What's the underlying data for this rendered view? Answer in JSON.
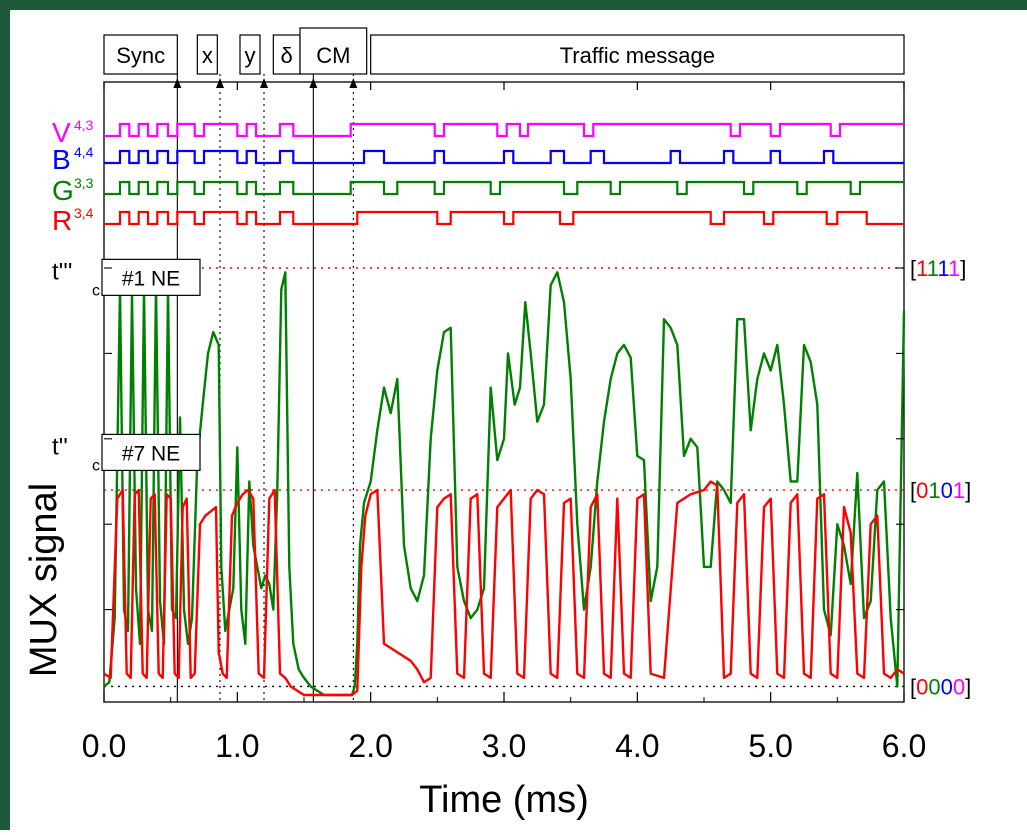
{
  "chart_data": {
    "type": "line",
    "xlabel": "Time (ms)",
    "ylabel": "MUX signal",
    "xlim": [
      0.0,
      6.0
    ],
    "x_ticks": [
      "0.0",
      "1.0",
      "2.0",
      "3.0",
      "4.0",
      "5.0",
      "6.0"
    ],
    "ylim": [
      -0.02,
      1.1
    ],
    "grid": false,
    "colors": {
      "frame": "#1c5a3a",
      "V": "#ff00ff",
      "B": "#0000ff",
      "G": "#008000",
      "R": "#ff0000",
      "axis": "#000000"
    },
    "segments": [
      {
        "label": "Sync",
        "x0": 0.0,
        "x1": 0.55
      },
      {
        "label": "x",
        "x0": 0.7,
        "x1": 0.85
      },
      {
        "label": "y",
        "x0": 1.02,
        "x1": 1.17
      },
      {
        "label": "δ",
        "x0": 1.27,
        "x1": 1.47
      },
      {
        "label": "CM",
        "x0": 1.47,
        "x1": 1.97
      },
      {
        "label": "Traffic message",
        "x0": 2.0,
        "x1": 6.0
      }
    ],
    "markers": [
      {
        "x": 0.55,
        "style": "solid"
      },
      {
        "x": 0.87,
        "style": "dotted"
      },
      {
        "x": 1.2,
        "style": "dotted"
      },
      {
        "x": 1.57,
        "style": "solid"
      },
      {
        "x": 1.87,
        "style": "dotted"
      }
    ],
    "code_levels": [
      {
        "name": "1111",
        "y": 1.0,
        "label": [
          "[",
          "1",
          "1",
          "1",
          "1",
          "]"
        ],
        "colors": [
          "#000000",
          "#ff0000",
          "#008000",
          "#0000ff",
          "#ff00ff",
          "#000000"
        ]
      },
      {
        "name": "0101",
        "y": 0.48,
        "label": [
          "[",
          "0",
          "1",
          "0",
          "1",
          "]"
        ],
        "colors": [
          "#000000",
          "#ff0000",
          "#008000",
          "#0000ff",
          "#ff00ff",
          "#000000"
        ]
      },
      {
        "name": "0000",
        "y": 0.02,
        "label": [
          "[",
          "0",
          "0",
          "0",
          "0",
          "]"
        ],
        "colors": [
          "#000000",
          "#ff0000",
          "#008000",
          "#0000ff",
          "#ff00ff",
          "#000000"
        ]
      }
    ],
    "thresholds": [
      {
        "label": "t'''",
        "sub": "c",
        "box": "#1 NE",
        "y": 0.95
      },
      {
        "label": "t''",
        "sub": "c",
        "box": "#7 NE",
        "y": 0.54
      }
    ],
    "digital_channels": [
      {
        "name": "V",
        "sub": "4,3",
        "color": "#ff00ff",
        "x": [
          0.0,
          0.12,
          0.12,
          0.19,
          0.19,
          0.26,
          0.26,
          0.33,
          0.33,
          0.4,
          0.4,
          0.48,
          0.48,
          0.55,
          0.55,
          0.68,
          0.68,
          0.75,
          0.75,
          1.0,
          1.0,
          1.07,
          1.07,
          1.14,
          1.14,
          1.32,
          1.32,
          1.42,
          1.42,
          1.85,
          1.85,
          2.48,
          2.48,
          2.55,
          2.55,
          2.95,
          2.95,
          3.02,
          3.02,
          3.12,
          3.12,
          3.18,
          3.18,
          3.6,
          3.6,
          3.67,
          3.67,
          4.7,
          4.7,
          4.77,
          4.77,
          5.0,
          5.0,
          5.07,
          5.07,
          5.45,
          5.45,
          5.52,
          5.52,
          6.0
        ],
        "y": [
          0,
          0,
          1,
          1,
          0,
          0,
          1,
          1,
          0,
          0,
          1,
          1,
          0,
          0,
          1,
          1,
          0,
          0,
          1,
          1,
          0,
          0,
          1,
          1,
          0,
          0,
          1,
          1,
          0,
          0,
          1,
          1,
          0,
          0,
          1,
          1,
          0,
          0,
          1,
          1,
          0,
          0,
          1,
          1,
          0,
          0,
          1,
          1,
          0,
          0,
          1,
          1,
          0,
          0,
          1,
          1,
          0,
          0,
          1,
          1
        ]
      },
      {
        "name": "B",
        "sub": "4,4",
        "color": "#0000ff",
        "x": [
          0.0,
          0.12,
          0.12,
          0.19,
          0.19,
          0.26,
          0.26,
          0.33,
          0.33,
          0.4,
          0.4,
          0.48,
          0.48,
          0.55,
          0.55,
          0.68,
          0.68,
          0.75,
          0.75,
          1.0,
          1.0,
          1.07,
          1.07,
          1.14,
          1.14,
          1.32,
          1.32,
          1.42,
          1.42,
          1.95,
          1.95,
          2.1,
          2.1,
          2.48,
          2.48,
          2.55,
          2.55,
          3.0,
          3.0,
          3.07,
          3.07,
          3.35,
          3.35,
          3.45,
          3.45,
          3.65,
          3.65,
          3.75,
          3.75,
          4.25,
          4.25,
          4.32,
          4.32,
          4.65,
          4.65,
          4.72,
          4.72,
          5.0,
          5.0,
          5.07,
          5.07,
          5.4,
          5.4,
          5.47,
          5.47,
          6.0
        ],
        "y": [
          0,
          0,
          1,
          1,
          0,
          0,
          1,
          1,
          0,
          0,
          1,
          1,
          0,
          0,
          1,
          1,
          0,
          0,
          1,
          1,
          0,
          0,
          1,
          1,
          0,
          0,
          1,
          1,
          0,
          0,
          1,
          1,
          0,
          0,
          1,
          1,
          0,
          0,
          1,
          1,
          0,
          0,
          1,
          1,
          0,
          0,
          1,
          1,
          0,
          0,
          1,
          1,
          0,
          0,
          1,
          1,
          0,
          0,
          1,
          1,
          0,
          0,
          1,
          1,
          0,
          0
        ]
      },
      {
        "name": "G",
        "sub": "3,3",
        "color": "#008000",
        "x": [
          0.0,
          0.12,
          0.12,
          0.19,
          0.19,
          0.26,
          0.26,
          0.33,
          0.33,
          0.4,
          0.4,
          0.48,
          0.48,
          0.55,
          0.55,
          0.68,
          0.68,
          0.75,
          0.75,
          1.0,
          1.0,
          1.07,
          1.07,
          1.14,
          1.14,
          1.32,
          1.32,
          1.42,
          1.42,
          1.85,
          1.85,
          2.1,
          2.1,
          2.2,
          2.2,
          2.48,
          2.48,
          2.55,
          2.55,
          2.9,
          2.9,
          2.97,
          2.97,
          3.45,
          3.45,
          3.55,
          3.55,
          3.8,
          3.8,
          3.87,
          3.87,
          4.3,
          4.3,
          4.37,
          4.37,
          4.8,
          4.8,
          4.87,
          4.87,
          5.2,
          5.2,
          5.27,
          5.27,
          5.6,
          5.6,
          5.67,
          5.67,
          6.0
        ],
        "y": [
          0,
          0,
          1,
          1,
          0,
          0,
          1,
          1,
          0,
          0,
          1,
          1,
          0,
          0,
          1,
          1,
          0,
          0,
          1,
          1,
          0,
          0,
          1,
          1,
          0,
          0,
          1,
          1,
          0,
          0,
          1,
          1,
          0,
          0,
          1,
          1,
          0,
          0,
          1,
          1,
          0,
          0,
          1,
          1,
          0,
          0,
          1,
          1,
          0,
          0,
          1,
          1,
          0,
          0,
          1,
          1,
          0,
          0,
          1,
          1,
          0,
          0,
          1,
          1,
          0,
          0,
          1,
          1
        ]
      },
      {
        "name": "R",
        "sub": "3,4",
        "color": "#ff0000",
        "x": [
          0.0,
          0.12,
          0.12,
          0.19,
          0.19,
          0.26,
          0.26,
          0.33,
          0.33,
          0.4,
          0.4,
          0.48,
          0.48,
          0.55,
          0.55,
          0.68,
          0.68,
          0.75,
          0.75,
          1.0,
          1.0,
          1.07,
          1.07,
          1.14,
          1.14,
          1.32,
          1.32,
          1.42,
          1.42,
          1.9,
          1.9,
          2.5,
          2.5,
          2.6,
          2.6,
          3.0,
          3.0,
          3.07,
          3.07,
          3.42,
          3.42,
          3.52,
          3.52,
          4.55,
          4.55,
          4.65,
          4.65,
          4.95,
          4.95,
          5.02,
          5.02,
          5.42,
          5.42,
          5.5,
          5.5,
          5.72,
          5.72,
          6.0
        ],
        "y": [
          0,
          0,
          1,
          1,
          0,
          0,
          1,
          1,
          0,
          0,
          1,
          1,
          0,
          0,
          1,
          1,
          0,
          0,
          1,
          1,
          0,
          0,
          1,
          1,
          0,
          0,
          1,
          1,
          0,
          0,
          1,
          1,
          0,
          0,
          1,
          1,
          0,
          0,
          1,
          1,
          0,
          0,
          1,
          1,
          0,
          0,
          1,
          1,
          0,
          0,
          1,
          1,
          0,
          0,
          1,
          1,
          0,
          0
        ]
      }
    ],
    "series": [
      {
        "color": "#008000",
        "x": [
          0.0,
          0.04,
          0.08,
          0.12,
          0.15,
          0.18,
          0.21,
          0.24,
          0.27,
          0.3,
          0.33,
          0.36,
          0.39,
          0.42,
          0.45,
          0.48,
          0.51,
          0.54,
          0.57,
          0.6,
          0.63,
          0.66,
          0.7,
          0.74,
          0.78,
          0.82,
          0.86,
          0.88,
          0.91,
          0.94,
          0.97,
          1.0,
          1.03,
          1.06,
          1.09,
          1.12,
          1.15,
          1.18,
          1.21,
          1.24,
          1.27,
          1.3,
          1.33,
          1.36,
          1.39,
          1.42,
          1.46,
          1.5,
          1.55,
          1.6,
          1.65,
          1.7,
          1.75,
          1.8,
          1.86,
          1.88,
          1.9,
          1.92,
          1.95,
          2.0,
          2.05,
          2.1,
          2.15,
          2.2,
          2.25,
          2.3,
          2.35,
          2.4,
          2.45,
          2.5,
          2.55,
          2.6,
          2.65,
          2.7,
          2.75,
          2.8,
          2.85,
          2.9,
          2.95,
          3.0,
          3.03,
          3.08,
          3.12,
          3.16,
          3.2,
          3.25,
          3.3,
          3.35,
          3.4,
          3.45,
          3.5,
          3.55,
          3.6,
          3.65,
          3.7,
          3.75,
          3.8,
          3.85,
          3.9,
          3.95,
          4.0,
          4.05,
          4.1,
          4.15,
          4.2,
          4.25,
          4.3,
          4.35,
          4.4,
          4.45,
          4.5,
          4.55,
          4.6,
          4.65,
          4.7,
          4.75,
          4.8,
          4.85,
          4.9,
          4.95,
          5.0,
          5.05,
          5.1,
          5.15,
          5.2,
          5.25,
          5.3,
          5.35,
          5.4,
          5.45,
          5.5,
          5.55,
          5.6,
          5.65,
          5.7,
          5.75,
          5.8,
          5.85,
          5.9,
          5.95,
          6.0
        ],
        "y": [
          0.02,
          0.03,
          0.18,
          0.95,
          0.2,
          0.15,
          0.94,
          0.25,
          0.12,
          0.95,
          0.2,
          0.15,
          0.96,
          0.22,
          0.12,
          0.95,
          0.2,
          0.18,
          0.65,
          0.2,
          0.12,
          0.18,
          0.55,
          0.68,
          0.8,
          0.85,
          0.82,
          0.3,
          0.15,
          0.2,
          0.25,
          0.58,
          0.2,
          0.12,
          0.5,
          0.35,
          0.3,
          0.25,
          0.28,
          0.26,
          0.2,
          0.48,
          0.95,
          0.99,
          0.3,
          0.12,
          0.06,
          0.04,
          0.02,
          0.01,
          0.0,
          0.0,
          0.0,
          0.0,
          0.0,
          0.02,
          0.12,
          0.35,
          0.45,
          0.5,
          0.62,
          0.72,
          0.66,
          0.74,
          0.35,
          0.25,
          0.22,
          0.28,
          0.6,
          0.76,
          0.85,
          0.86,
          0.3,
          0.22,
          0.18,
          0.2,
          0.25,
          0.72,
          0.55,
          0.6,
          0.8,
          0.68,
          0.72,
          0.92,
          0.8,
          0.64,
          0.68,
          0.96,
          0.99,
          0.92,
          0.74,
          0.4,
          0.2,
          0.3,
          0.5,
          0.64,
          0.74,
          0.8,
          0.82,
          0.79,
          0.56,
          0.55,
          0.22,
          0.3,
          0.88,
          0.86,
          0.82,
          0.56,
          0.6,
          0.58,
          0.3,
          0.3,
          0.5,
          0.48,
          0.45,
          0.88,
          0.88,
          0.62,
          0.74,
          0.8,
          0.76,
          0.82,
          0.68,
          0.5,
          0.5,
          0.82,
          0.78,
          0.68,
          0.2,
          0.14,
          0.4,
          0.35,
          0.26,
          0.52,
          0.18,
          0.22,
          0.48,
          0.5,
          0.18,
          0.02,
          0.9
        ]
      },
      {
        "color": "#ff0000",
        "x": [
          0.0,
          0.05,
          0.1,
          0.14,
          0.17,
          0.2,
          0.23,
          0.26,
          0.29,
          0.32,
          0.35,
          0.38,
          0.41,
          0.44,
          0.47,
          0.5,
          0.53,
          0.56,
          0.59,
          0.62,
          0.65,
          0.68,
          0.72,
          0.76,
          0.8,
          0.84,
          0.86,
          0.89,
          0.92,
          0.96,
          1.0,
          1.04,
          1.08,
          1.12,
          1.16,
          1.2,
          1.24,
          1.28,
          1.32,
          1.36,
          1.4,
          1.45,
          1.5,
          1.6,
          1.7,
          1.8,
          1.86,
          1.9,
          1.93,
          1.96,
          2.0,
          2.05,
          2.1,
          2.2,
          2.3,
          2.35,
          2.4,
          2.45,
          2.5,
          2.55,
          2.6,
          2.65,
          2.7,
          2.75,
          2.8,
          2.85,
          2.9,
          2.95,
          3.0,
          3.05,
          3.1,
          3.15,
          3.2,
          3.25,
          3.3,
          3.35,
          3.4,
          3.45,
          3.5,
          3.55,
          3.6,
          3.65,
          3.7,
          3.75,
          3.8,
          3.85,
          3.9,
          3.95,
          4.0,
          4.05,
          4.1,
          4.2,
          4.3,
          4.4,
          4.5,
          4.55,
          4.6,
          4.65,
          4.7,
          4.75,
          4.8,
          4.85,
          4.9,
          4.95,
          5.0,
          5.05,
          5.1,
          5.15,
          5.2,
          5.25,
          5.3,
          5.35,
          5.4,
          5.45,
          5.5,
          5.55,
          5.6,
          5.65,
          5.7,
          5.75,
          5.8,
          5.85,
          5.9,
          5.95,
          6.0
        ],
        "y": [
          0.05,
          0.04,
          0.46,
          0.48,
          0.05,
          0.04,
          0.47,
          0.48,
          0.05,
          0.04,
          0.46,
          0.47,
          0.05,
          0.04,
          0.47,
          0.46,
          0.05,
          0.04,
          0.44,
          0.46,
          0.04,
          0.05,
          0.4,
          0.42,
          0.43,
          0.44,
          0.1,
          0.05,
          0.04,
          0.42,
          0.45,
          0.47,
          0.48,
          0.46,
          0.05,
          0.04,
          0.46,
          0.48,
          0.05,
          0.04,
          0.02,
          0.01,
          0.0,
          0.0,
          0.0,
          0.0,
          0.0,
          0.01,
          0.3,
          0.42,
          0.47,
          0.48,
          0.12,
          0.1,
          0.08,
          0.06,
          0.03,
          0.04,
          0.44,
          0.46,
          0.47,
          0.05,
          0.04,
          0.46,
          0.47,
          0.05,
          0.04,
          0.44,
          0.46,
          0.48,
          0.05,
          0.04,
          0.46,
          0.48,
          0.47,
          0.05,
          0.04,
          0.45,
          0.46,
          0.05,
          0.04,
          0.44,
          0.47,
          0.05,
          0.04,
          0.46,
          0.05,
          0.04,
          0.46,
          0.47,
          0.05,
          0.04,
          0.45,
          0.47,
          0.48,
          0.5,
          0.49,
          0.04,
          0.05,
          0.45,
          0.47,
          0.05,
          0.04,
          0.44,
          0.46,
          0.05,
          0.04,
          0.45,
          0.47,
          0.05,
          0.04,
          0.46,
          0.47,
          0.05,
          0.04,
          0.44,
          0.38,
          0.05,
          0.04,
          0.4,
          0.42,
          0.05,
          0.04,
          0.06,
          0.05
        ]
      }
    ]
  }
}
